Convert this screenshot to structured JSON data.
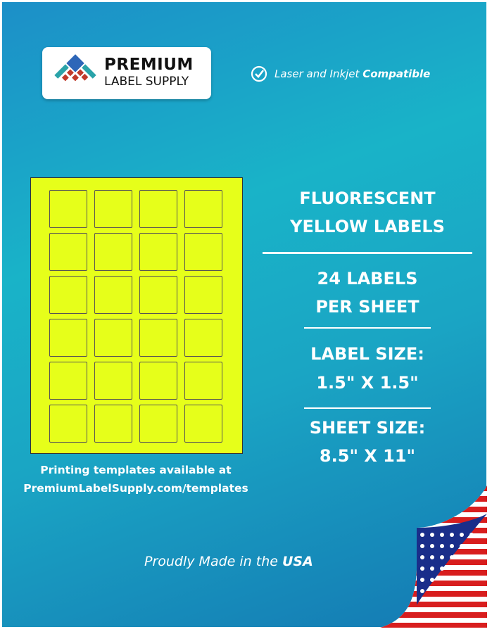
{
  "brand": {
    "line1": "PREMIUM",
    "line2": "LABEL SUPPLY",
    "colors": {
      "blue": "#2d66b8",
      "teal": "#2aa3a9",
      "red": "#c0392b"
    }
  },
  "compat": {
    "icon": "check-circle-icon",
    "text": "Laser and Inkjet ",
    "bold": "Compatible"
  },
  "sheet": {
    "color": "#e6ff1a",
    "columns": 4,
    "rows": 6
  },
  "specs": {
    "title1": "FLUORESCENT",
    "title2": "YELLOW LABELS",
    "count1": "24 LABELS",
    "count2": "PER SHEET",
    "size_label": "LABEL SIZE:",
    "size_value": "1.5\" X 1.5\"",
    "sheet_label": "SHEET SIZE:",
    "sheet_value": "8.5\" X 11\""
  },
  "templates": {
    "line1": "Printing templates available at",
    "line2": "PremiumLabelSupply.com/templates"
  },
  "origin": {
    "text": "Proudly Made in the ",
    "bold": "USA",
    "icon": "us-flag-icon"
  }
}
